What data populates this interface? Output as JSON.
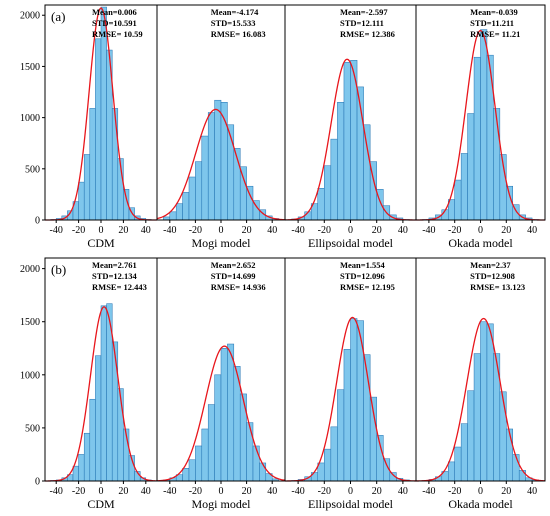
{
  "chart_data": {
    "type": "bar",
    "layout": "2 rows x 4 histogram panels with fitted normal curves",
    "bar_color": "#7ec6ec",
    "bar_edge_color": "#1f6fb0",
    "curve_color": "#e8161c",
    "x_ticks": [
      -40,
      -20,
      0,
      20,
      40
    ],
    "x_range": [
      -50,
      50
    ],
    "y_ticks": [
      0,
      500,
      1000,
      1500,
      2000
    ],
    "y_range": [
      0,
      2100
    ],
    "bin_width": 5,
    "rows": [
      {
        "label": "(a)",
        "panels": [
          {
            "model": "CDM",
            "mean": "Mean=0.006",
            "std": "STD=10.591",
            "rmse": "RMSE= 10.59",
            "mu": 0.006,
            "sigma": 10.591,
            "peak": 2070,
            "bins": [
              -45,
              -40,
              -35,
              -30,
              -25,
              -20,
              -15,
              -10,
              -5,
              0,
              5,
              10,
              15,
              20,
              25,
              30,
              35,
              40
            ],
            "counts": [
              5,
              15,
              40,
              90,
              180,
              370,
              640,
              1090,
              1770,
              2080,
              1660,
              1090,
              600,
              300,
              120,
              40,
              15,
              5
            ]
          },
          {
            "model": "Mogi model",
            "mean": "Mean=-4.174",
            "std": "STD=15.533",
            "rmse": "RMSE= 16.083",
            "mu": -4.174,
            "sigma": 15.533,
            "peak": 1080,
            "bins": [
              -45,
              -40,
              -35,
              -30,
              -25,
              -20,
              -15,
              -10,
              -5,
              0,
              5,
              10,
              15,
              20,
              25,
              30,
              35,
              40
            ],
            "counts": [
              30,
              80,
              160,
              270,
              420,
              570,
              820,
              1050,
              1170,
              1150,
              930,
              700,
              520,
              330,
              190,
              100,
              40,
              15
            ]
          },
          {
            "model": "Ellipsoidal model",
            "mean": "Mean=-2.597",
            "std": "STD=12.111",
            "rmse": "RMSE= 12.386",
            "mu": -2.597,
            "sigma": 12.111,
            "peak": 1570,
            "bins": [
              -45,
              -40,
              -35,
              -30,
              -25,
              -20,
              -15,
              -10,
              -5,
              0,
              5,
              10,
              15,
              20,
              25,
              30,
              35,
              40
            ],
            "counts": [
              10,
              30,
              80,
              160,
              310,
              530,
              790,
              1150,
              1540,
              1560,
              1300,
              930,
              570,
              300,
              140,
              50,
              20,
              5
            ]
          },
          {
            "model": "Okada model",
            "mean": "Mean=-0.039",
            "std": "STD=11.211",
            "rmse": "RMSE= 11.21",
            "mu": -0.039,
            "sigma": 11.211,
            "peak": 1850,
            "bins": [
              -45,
              -40,
              -35,
              -30,
              -25,
              -20,
              -15,
              -10,
              -5,
              0,
              5,
              10,
              15,
              20,
              25,
              30,
              35,
              40
            ],
            "counts": [
              5,
              20,
              50,
              100,
              200,
              390,
              650,
              1040,
              1590,
              1860,
              1610,
              1090,
              640,
              330,
              150,
              50,
              20,
              5
            ]
          }
        ]
      },
      {
        "label": "(b)",
        "panels": [
          {
            "model": "CDM",
            "mean": "Mean=2.761",
            "std": "STD=12.134",
            "rmse": "RMSE= 12.443",
            "mu": 2.761,
            "sigma": 12.134,
            "peak": 1640,
            "bins": [
              -45,
              -40,
              -35,
              -30,
              -25,
              -20,
              -15,
              -10,
              -5,
              0,
              5,
              10,
              15,
              20,
              25,
              30,
              35,
              40
            ],
            "counts": [
              5,
              10,
              30,
              60,
              140,
              250,
              450,
              770,
              1180,
              1650,
              1670,
              1310,
              870,
              490,
              240,
              90,
              30,
              10
            ]
          },
          {
            "model": "Mogi model",
            "mean": "Mean=2.652",
            "std": "STD=14.699",
            "rmse": "RMSE= 14.936",
            "mu": 2.652,
            "sigma": 14.699,
            "peak": 1270,
            "bins": [
              -45,
              -40,
              -35,
              -30,
              -25,
              -20,
              -15,
              -10,
              -5,
              0,
              5,
              10,
              15,
              20,
              25,
              30,
              35,
              40
            ],
            "counts": [
              10,
              30,
              60,
              120,
              200,
              330,
              490,
              720,
              1000,
              1250,
              1290,
              1080,
              820,
              550,
              330,
              170,
              70,
              20
            ]
          },
          {
            "model": "Ellipsoidal model",
            "mean": "Mean=1.554",
            "std": "STD=12.096",
            "rmse": "RMSE= 12.195",
            "mu": 1.554,
            "sigma": 12.096,
            "peak": 1540,
            "bins": [
              -45,
              -40,
              -35,
              -30,
              -25,
              -20,
              -15,
              -10,
              -5,
              0,
              5,
              10,
              15,
              20,
              25,
              30,
              35,
              40
            ],
            "counts": [
              5,
              15,
              40,
              80,
              170,
              300,
              510,
              860,
              1240,
              1530,
              1510,
              1190,
              790,
              430,
              210,
              80,
              25,
              10
            ]
          },
          {
            "model": "Okada model",
            "mean": "Mean=2.37",
            "std": "STD=12.908",
            "rmse": "RMSE= 13.123",
            "mu": 2.37,
            "sigma": 12.908,
            "peak": 1530,
            "bins": [
              -45,
              -40,
              -35,
              -30,
              -25,
              -20,
              -15,
              -10,
              -5,
              0,
              5,
              10,
              15,
              20,
              25,
              30,
              35,
              40
            ],
            "counts": [
              5,
              15,
              40,
              90,
              180,
              320,
              540,
              850,
              1200,
              1500,
              1480,
              1200,
              840,
              490,
              250,
              100,
              30,
              10
            ]
          }
        ]
      }
    ]
  }
}
